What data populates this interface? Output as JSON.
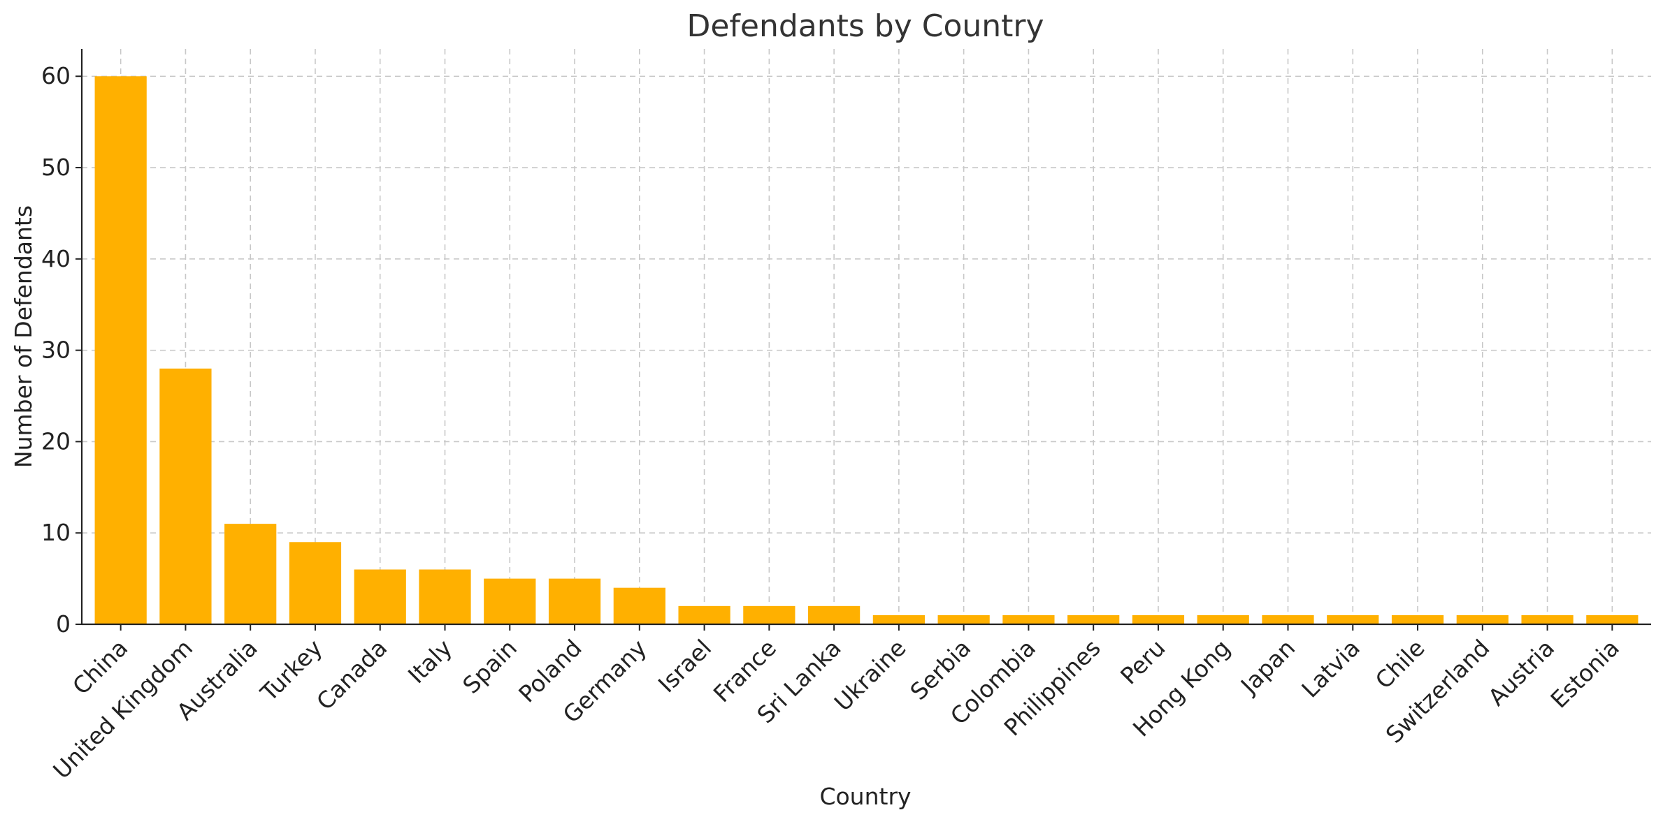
{
  "chart_data": {
    "type": "bar",
    "title": "Defendants by Country",
    "xlabel": "Country",
    "ylabel": "Number of Defendants",
    "categories": [
      "China",
      "United Kingdom",
      "Australia",
      "Turkey",
      "Canada",
      "Italy",
      "Spain",
      "Poland",
      "Germany",
      "Israel",
      "France",
      "Sri Lanka",
      "Ukraine",
      "Serbia",
      "Colombia",
      "Philippines",
      "Peru",
      "Hong Kong",
      "Japan",
      "Latvia",
      "Chile",
      "Switzerland",
      "Austria",
      "Estonia"
    ],
    "values": [
      60,
      28,
      11,
      9,
      6,
      6,
      5,
      5,
      4,
      2,
      2,
      2,
      1,
      1,
      1,
      1,
      1,
      1,
      1,
      1,
      1,
      1,
      1,
      1
    ],
    "ylim": [
      0,
      63
    ],
    "yticks": [
      0,
      10,
      20,
      30,
      40,
      50,
      60
    ],
    "grid": true,
    "bar_color": "#FFB000",
    "tick_label_rotation": -45
  }
}
